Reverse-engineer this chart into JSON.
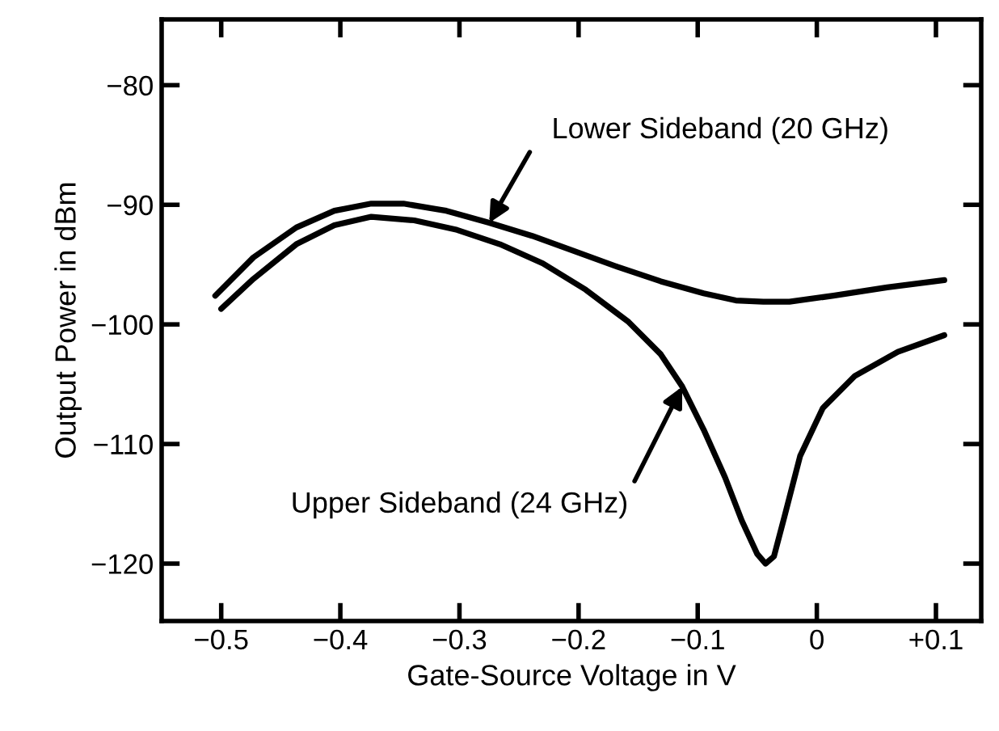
{
  "chart_data": {
    "type": "line",
    "xlabel": "Gate-Source Voltage in V",
    "ylabel": "Output Power in dBm",
    "xlim": [
      -0.55,
      0.138
    ],
    "ylim": [
      -124.8,
      -74.5
    ],
    "xticks": [
      {
        "value": -0.5,
        "label": "−0.5"
      },
      {
        "value": -0.4,
        "label": "−0.4"
      },
      {
        "value": -0.3,
        "label": "−0.3"
      },
      {
        "value": -0.2,
        "label": "−0.2"
      },
      {
        "value": -0.1,
        "label": "−0.1"
      },
      0,
      {
        "value": 0.1,
        "label": "+0.1"
      }
    ],
    "yticks": [
      {
        "value": -80,
        "label": "−80"
      },
      {
        "value": -90,
        "label": "−90"
      },
      {
        "value": -100,
        "label": "−100"
      },
      {
        "value": -110,
        "label": "−110"
      },
      {
        "value": -120,
        "label": "−120"
      }
    ],
    "grid": false,
    "legend": false,
    "marker": "none",
    "line_style": "solid",
    "series": [
      {
        "color": "#000000",
        "x": [
          -0.505,
          -0.473,
          -0.437,
          -0.405,
          -0.374,
          -0.347,
          -0.311,
          -0.275,
          -0.239,
          -0.203,
          -0.167,
          -0.131,
          -0.095,
          -0.068,
          -0.045,
          -0.023,
          0.014,
          0.059,
          0.107
        ],
        "values": [
          -97.6,
          -94.4,
          -91.9,
          -90.5,
          -89.9,
          -89.9,
          -90.5,
          -91.5,
          -92.6,
          -93.9,
          -95.2,
          -96.4,
          -97.4,
          -98.0,
          -98.1,
          -98.1,
          -97.6,
          -96.9,
          -96.3
        ]
      },
      {
        "color": "#000000",
        "x": [
          -0.5,
          -0.473,
          -0.437,
          -0.405,
          -0.374,
          -0.338,
          -0.302,
          -0.266,
          -0.23,
          -0.194,
          -0.158,
          -0.131,
          -0.113,
          -0.095,
          -0.077,
          -0.063,
          -0.05,
          -0.043,
          -0.036,
          -0.027,
          -0.014,
          0.005,
          0.032,
          0.068,
          0.107
        ],
        "values": [
          -98.7,
          -96.2,
          -93.3,
          -91.7,
          -91.0,
          -91.3,
          -92.1,
          -93.3,
          -94.9,
          -97.1,
          -99.8,
          -102.5,
          -105.2,
          -108.8,
          -112.8,
          -116.4,
          -119.2,
          -120.0,
          -119.4,
          -116.0,
          -111.0,
          -107.0,
          -104.3,
          -102.3,
          -100.9
        ]
      }
    ],
    "annotations": [
      {
        "text": "Lower Sideband (20 GHz)",
        "x": -0.275,
        "y": -91.5
      },
      {
        "text": "Upper Sideband (24 GHz)",
        "x": -0.113,
        "y": -105.2
      }
    ]
  }
}
